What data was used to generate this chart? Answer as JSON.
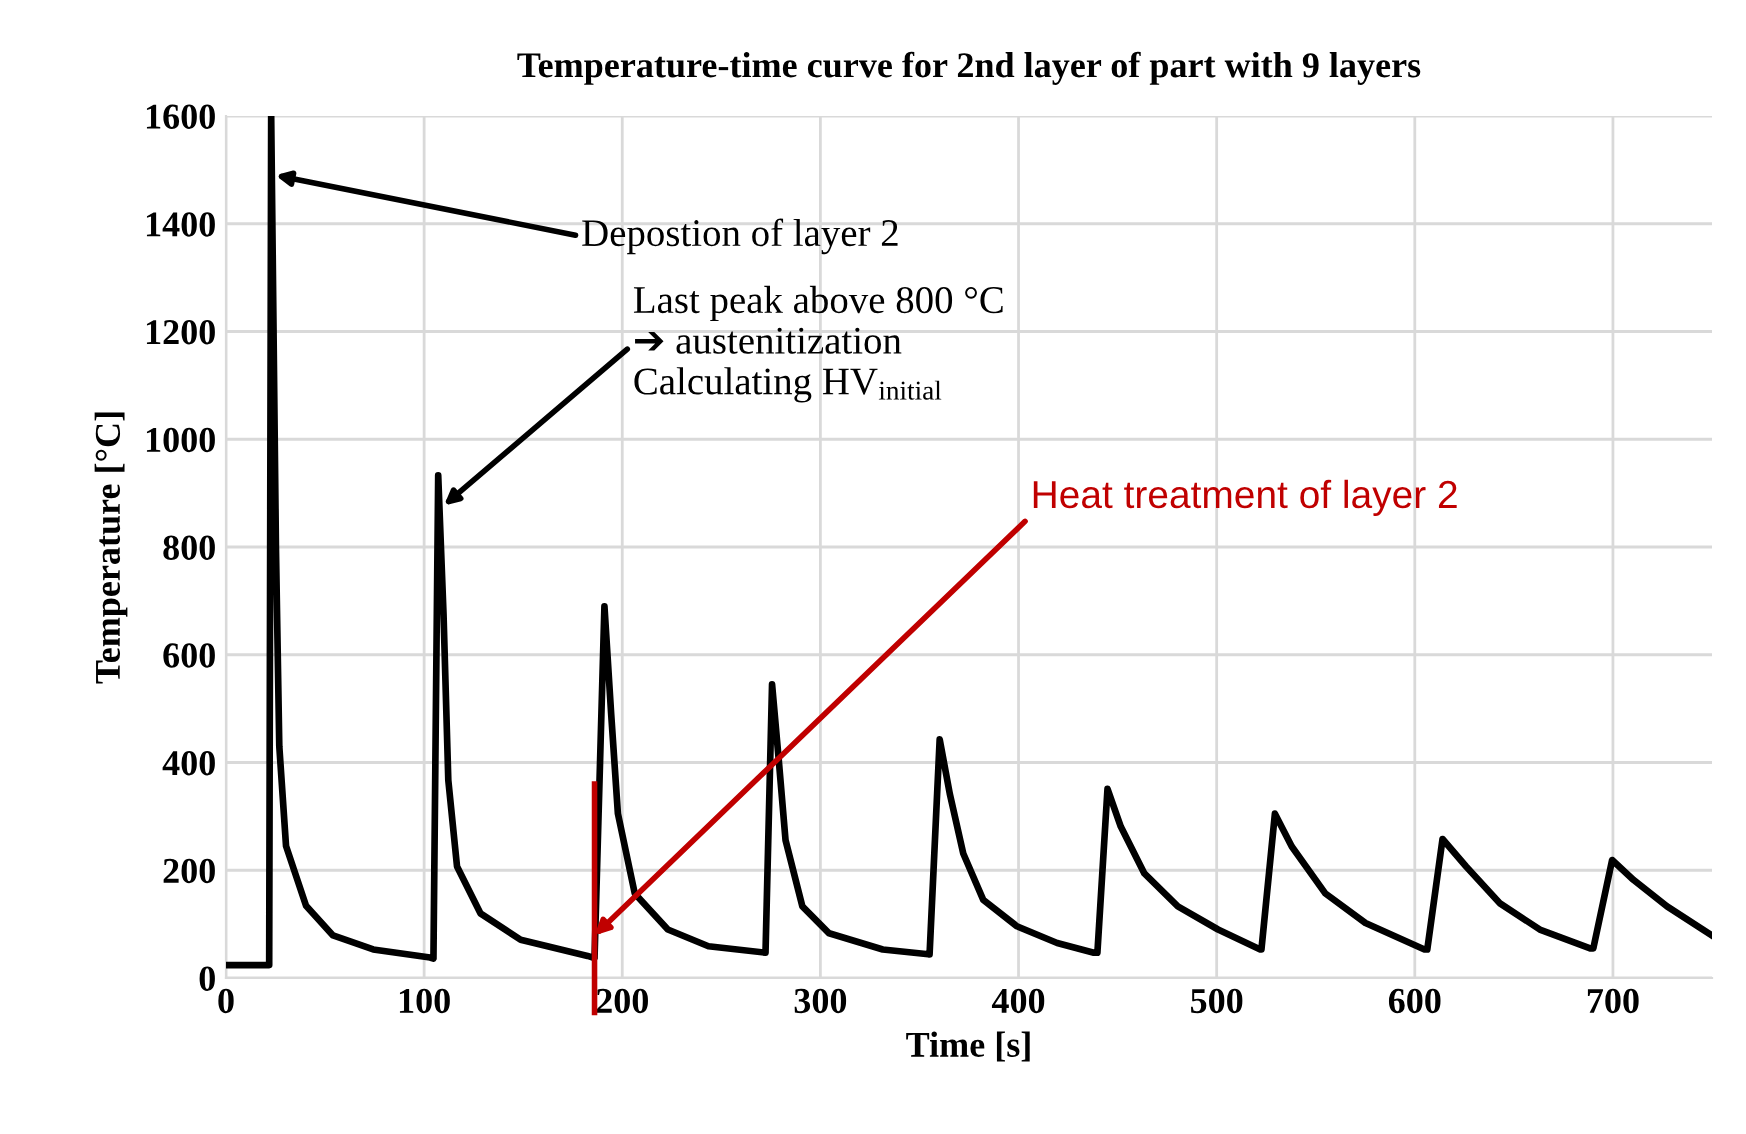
{
  "chart_data": {
    "type": "line",
    "title": "Temperature-time curve for 2nd layer of part with 9 layers",
    "xlabel": "Time [s]",
    "ylabel": "Temperature [°C]",
    "xlim": [
      0,
      750
    ],
    "xticks": [
      0,
      100,
      200,
      300,
      400,
      500,
      600,
      700
    ],
    "ylim": [
      0,
      1600
    ],
    "yticks": [
      0,
      200,
      400,
      600,
      800,
      1000,
      1200,
      1400,
      1600
    ],
    "grid": true,
    "marker": "none",
    "line_style": "solid",
    "series": [
      {
        "color": "#000000",
        "x": [
          0,
          21.8,
          22.8,
          25.2,
          26.9,
          30.3,
          40.4,
          54,
          74.3,
          103,
          104.7,
          107.1,
          109.8,
          112.2,
          116.6,
          128.4,
          148.7,
          182.5,
          186,
          191,
          194.4,
          197.8,
          206.3,
          223,
          243.5,
          272.3,
          275.6,
          279,
          282.4,
          290.9,
          304.4,
          331.5,
          354.5,
          355.1,
          360.2,
          365.3,
          372.1,
          382.2,
          399.2,
          419.5,
          438,
          439.8,
          444.9,
          451.6,
          463.5,
          480.4,
          500.7,
          522,
          522.6,
          529.4,
          537.9,
          554.8,
          575.1,
          604.9,
          606.3,
          614,
          625.9,
          642.8,
          663.1,
          688.5,
          690.1,
          699.6,
          710.4,
          727.3,
          750
        ],
        "values": [
          24,
          24,
          1600,
          800,
          430,
          245,
          134,
          79,
          53,
          38,
          36,
          933,
          674,
          367,
          207,
          120,
          71,
          41,
          37,
          690,
          490,
          305,
          157,
          90,
          59,
          47,
          545,
          404,
          256,
          133,
          83,
          53,
          44,
          44,
          443,
          342,
          231,
          145,
          96,
          65,
          47,
          47,
          351,
          281,
          194,
          133,
          90,
          53,
          53,
          305,
          244,
          157,
          102,
          53,
          53,
          258,
          207,
          139,
          90,
          55,
          55,
          219,
          182,
          133,
          79
        ]
      }
    ],
    "ref_lines": [
      {
        "axis": "x",
        "value": 186,
        "color": "#c00000",
        "line_style": "solid"
      }
    ],
    "annotations": [
      {
        "text": "Depostion of layer 2",
        "x": 25,
        "y": 1490
      },
      {
        "text": "Last peak above 800 °C\n➔ austenitization\nCalculating HV$_{initial}$",
        "x": 110,
        "y": 877
      },
      {
        "text": "Heat treatment of layer 2",
        "x": 186,
        "y": 79
      }
    ]
  }
}
